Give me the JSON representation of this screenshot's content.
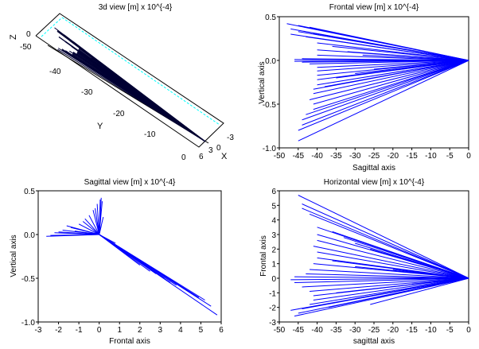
{
  "colors": {
    "background": "#ffffff",
    "data_line": "#0000ff",
    "data_line_3d": "#000033",
    "axis": "#000000",
    "box_accent": "#00ffff"
  },
  "chart_data": [
    {
      "id": "view3d",
      "type": "line",
      "title": "3d view [m] x 10^{-4}",
      "xlabel": "X",
      "ylabel": "Y",
      "zlabel": "Z",
      "x_ticks": [
        "-3",
        "0",
        "3",
        "6"
      ],
      "y_ticks": [
        "-40",
        "-30",
        "-20",
        "-10",
        "0"
      ],
      "z_ticks": [
        "0",
        "-50"
      ],
      "grid": false
    },
    {
      "id": "frontal",
      "type": "line",
      "title": "Frontal view [m] x 10^{-4}",
      "xlabel": "Sagittal axis",
      "ylabel": "Vertical axis",
      "xlim": [
        -50,
        0
      ],
      "ylim": [
        -1.0,
        0.5
      ],
      "x_ticks": [
        "-50",
        "-45",
        "-40",
        "-35",
        "-30",
        "-25",
        "-20",
        "-15",
        "-10",
        "-5",
        "0"
      ],
      "y_ticks": [
        "-1.0",
        "-0.5",
        "0.0",
        "0.5"
      ],
      "x_tick_values": [
        -50,
        -45,
        -40,
        -35,
        -30,
        -25,
        -20,
        -15,
        -10,
        -5,
        0
      ],
      "y_tick_values": [
        -1.0,
        -0.5,
        0.0,
        0.5
      ],
      "origin": [
        0,
        0
      ],
      "endpoints": [
        [
          -48,
          0.42
        ],
        [
          -47,
          0.36
        ],
        [
          -47,
          0.3
        ],
        [
          -45,
          0.4
        ],
        [
          -45,
          0.33
        ],
        [
          -43,
          0.27
        ],
        [
          -42,
          0.38
        ],
        [
          -41,
          0.31
        ],
        [
          -40,
          0.2
        ],
        [
          -40,
          0.12
        ],
        [
          -40,
          0.06
        ],
        [
          -44,
          0.02
        ],
        [
          -46,
          0.01
        ],
        [
          -46,
          -0.01
        ],
        [
          -44,
          -0.02
        ],
        [
          -42,
          -0.04
        ],
        [
          -40,
          -0.08
        ],
        [
          -40,
          -0.12
        ],
        [
          -40,
          -0.17
        ],
        [
          -40,
          -0.22
        ],
        [
          -40,
          -0.28
        ],
        [
          -41,
          -0.33
        ],
        [
          -41,
          -0.38
        ],
        [
          -42,
          -0.45
        ],
        [
          -41,
          -0.5
        ],
        [
          -41,
          -0.56
        ],
        [
          -43,
          -0.62
        ],
        [
          -44,
          -0.68
        ],
        [
          -44,
          -0.74
        ],
        [
          -45,
          -0.8
        ],
        [
          -45,
          -0.92
        ],
        [
          -38,
          -0.3
        ],
        [
          -35,
          -0.2
        ],
        [
          -30,
          -0.15
        ],
        [
          -25,
          -0.1
        ],
        [
          -36,
          0.16
        ],
        [
          -32,
          0.1
        ],
        [
          -28,
          0.06
        ]
      ]
    },
    {
      "id": "sagittal",
      "type": "line",
      "title": "Sagittal view [m] x 10^{-4}",
      "xlabel": "Frontal axis",
      "ylabel": "Vertical axis",
      "xlim": [
        -3,
        6
      ],
      "ylim": [
        -1.0,
        0.5
      ],
      "x_ticks": [
        "-3",
        "-2",
        "-1",
        "0",
        "1",
        "2",
        "3",
        "4",
        "5",
        "6"
      ],
      "y_ticks": [
        "-1.0",
        "-0.5",
        "0.0",
        "0.5"
      ],
      "x_tick_values": [
        -3,
        -2,
        -1,
        0,
        1,
        2,
        3,
        4,
        5,
        6
      ],
      "y_tick_values": [
        -1.0,
        -0.5,
        0.0,
        0.5
      ],
      "origin": [
        0,
        0
      ],
      "endpoints": [
        [
          0.1,
          0.42
        ],
        [
          0.15,
          0.38
        ],
        [
          0.05,
          0.4
        ],
        [
          -0.1,
          0.35
        ],
        [
          -0.2,
          0.3
        ],
        [
          -0.3,
          0.28
        ],
        [
          -0.5,
          0.22
        ],
        [
          -0.7,
          0.18
        ],
        [
          -1.0,
          0.12
        ],
        [
          -1.4,
          0.08
        ],
        [
          -1.8,
          0.05
        ],
        [
          -2.2,
          0.02
        ],
        [
          -2.6,
          -0.02
        ],
        [
          -2.4,
          -0.01
        ],
        [
          -2.0,
          0.03
        ],
        [
          -1.2,
          0.04
        ],
        [
          -0.8,
          0.15
        ],
        [
          -1.6,
          0.1
        ],
        [
          0.2,
          0.2
        ],
        [
          0.1,
          0.1
        ],
        [
          0.8,
          -0.1
        ],
        [
          1.5,
          -0.25
        ],
        [
          2.5,
          -0.42
        ],
        [
          3.2,
          -0.5
        ],
        [
          3.8,
          -0.58
        ],
        [
          4.2,
          -0.62
        ],
        [
          4.6,
          -0.68
        ],
        [
          4.9,
          -0.72
        ],
        [
          5.2,
          -0.75
        ],
        [
          5.5,
          -0.82
        ],
        [
          5.8,
          -0.92
        ],
        [
          4.4,
          -0.65
        ],
        [
          3.5,
          -0.55
        ],
        [
          2.8,
          -0.45
        ],
        [
          2.0,
          -0.35
        ]
      ]
    },
    {
      "id": "horizontal",
      "type": "line",
      "title": "Horizontal view [m] x 10^{-4}",
      "xlabel": "sagittal axis",
      "ylabel": "Frontal axis",
      "xlim": [
        -50,
        0
      ],
      "ylim": [
        -3,
        6
      ],
      "x_ticks": [
        "-50",
        "-45",
        "-40",
        "-35",
        "-30",
        "-25",
        "-20",
        "-15",
        "-10",
        "-5",
        "0"
      ],
      "y_ticks": [
        "-3",
        "-2",
        "-1",
        "0",
        "1",
        "2",
        "3",
        "4",
        "5",
        "6"
      ],
      "x_tick_values": [
        -50,
        -45,
        -40,
        -35,
        -30,
        -25,
        -20,
        -15,
        -10,
        -5,
        0
      ],
      "y_tick_values": [
        -3,
        -2,
        -1,
        0,
        1,
        2,
        3,
        4,
        5,
        6
      ],
      "origin": [
        0,
        0
      ],
      "endpoints": [
        [
          -45,
          5.7
        ],
        [
          -44,
          5.1
        ],
        [
          -44,
          4.8
        ],
        [
          -42,
          4.4
        ],
        [
          -40,
          3.5
        ],
        [
          -40,
          3.0
        ],
        [
          -40,
          2.6
        ],
        [
          -41,
          2.2
        ],
        [
          -40,
          1.8
        ],
        [
          -40,
          1.4
        ],
        [
          -41,
          1.0
        ],
        [
          -42,
          0.6
        ],
        [
          -43,
          0.3
        ],
        [
          -46,
          0.1
        ],
        [
          -47,
          -0.1
        ],
        [
          -46,
          -0.3
        ],
        [
          -44,
          -0.6
        ],
        [
          -42,
          -0.9
        ],
        [
          -41,
          -1.2
        ],
        [
          -41,
          -1.5
        ],
        [
          -42,
          -1.8
        ],
        [
          -44,
          -2.1
        ],
        [
          -45,
          -2.4
        ],
        [
          -46,
          -2.6
        ],
        [
          -47,
          -2.2
        ],
        [
          -36,
          3.2
        ],
        [
          -33,
          2.8
        ],
        [
          -30,
          2.4
        ],
        [
          -26,
          2.0
        ],
        [
          -36,
          1.2
        ],
        [
          -30,
          0.8
        ],
        [
          -35,
          -1.0
        ],
        [
          -30,
          -1.4
        ],
        [
          -26,
          -1.8
        ],
        [
          -37,
          -2.0
        ],
        [
          -20,
          0.6
        ],
        [
          -15,
          -0.4
        ]
      ]
    }
  ]
}
